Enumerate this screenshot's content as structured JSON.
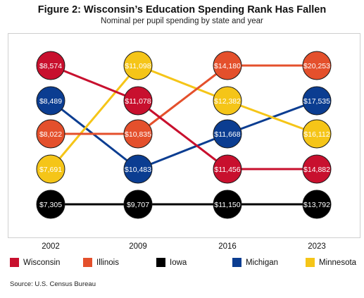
{
  "title": "Figure 2: Wisconsin’s Education Spending Rank Has Fallen",
  "subtitle": "Nominal per pupil spending by state and year",
  "source": "Source: U.S. Census Bureau",
  "chart_data": {
    "type": "line",
    "subtype": "bump-chart",
    "categories": [
      "2002",
      "2009",
      "2016",
      "2023"
    ],
    "series": [
      {
        "name": "Wisconsin",
        "color": "#c8102e",
        "values": [
          8574,
          11078,
          11456,
          14882
        ],
        "labels": [
          "$8,574",
          "$11,078",
          "$11,456",
          "$14,882"
        ],
        "ranks": [
          1,
          2,
          4,
          4
        ]
      },
      {
        "name": "Illinois",
        "color": "#e4502c",
        "values": [
          8022,
          10835,
          14180,
          20253
        ],
        "labels": [
          "$8,022",
          "$10,835",
          "$14,180",
          "$20,253"
        ],
        "ranks": [
          3,
          3,
          1,
          1
        ]
      },
      {
        "name": "Iowa",
        "color": "#000000",
        "values": [
          7305,
          9707,
          11150,
          13792
        ],
        "labels": [
          "$7,305",
          "$9,707",
          "$11,150",
          "$13,792"
        ],
        "ranks": [
          5,
          5,
          5,
          5
        ]
      },
      {
        "name": "Michigan",
        "color": "#0b3d91",
        "values": [
          8489,
          10483,
          11668,
          17535
        ],
        "labels": [
          "$8,489",
          "$10,483",
          "$11,668",
          "$17,535"
        ],
        "ranks": [
          2,
          4,
          3,
          2
        ]
      },
      {
        "name": "Minnesota",
        "color": "#f5c518",
        "values": [
          7691,
          11098,
          12382,
          16112
        ],
        "labels": [
          "$7,691",
          "$11,098",
          "$12,382",
          "$16,112"
        ],
        "ranks": [
          4,
          1,
          2,
          3
        ]
      }
    ],
    "legend": "bottom",
    "grid": false
  }
}
